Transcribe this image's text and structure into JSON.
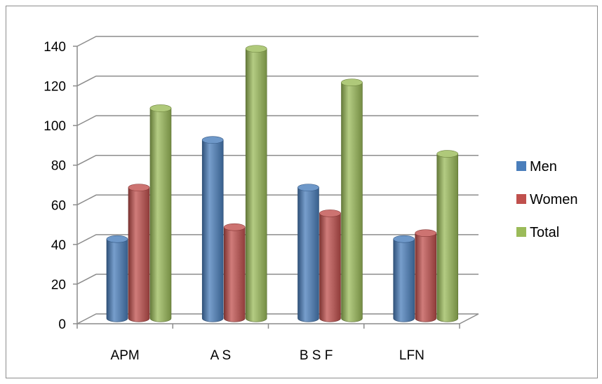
{
  "chart_data": {
    "type": "bar",
    "style": "3d-cylinder",
    "categories": [
      "APM",
      "A S",
      "B S F",
      "LFN"
    ],
    "series": [
      {
        "name": "Men",
        "color": "#4a7ebb",
        "values": [
          40,
          90,
          66,
          40
        ]
      },
      {
        "name": "Women",
        "color": "#c0504d",
        "values": [
          66,
          46,
          53,
          43
        ]
      },
      {
        "name": "Total",
        "color": "#9bbb59",
        "values": [
          106,
          136,
          119,
          83
        ]
      }
    ],
    "title": "",
    "xlabel": "",
    "ylabel": "",
    "ylim": [
      0,
      140
    ],
    "y_ticks": [
      0,
      20,
      40,
      60,
      80,
      100,
      120,
      140
    ],
    "grid": true,
    "legend_position": "right"
  }
}
